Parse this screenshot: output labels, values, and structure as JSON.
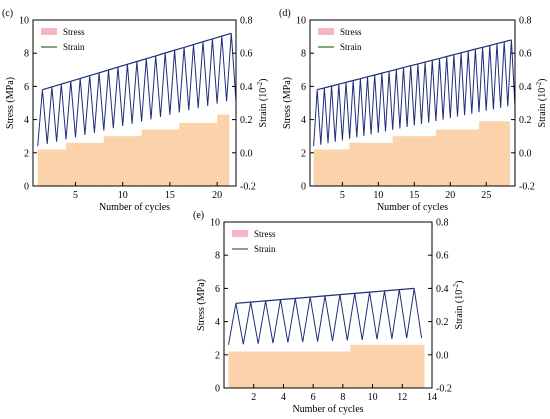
{
  "chart_data": [
    {
      "type": "area",
      "panel_label": "(c)",
      "xlabel": "Number of cycles",
      "ylabel": "Stress (MPa)",
      "y2label": "Strain (10",
      "y2label_exp": "-2",
      "y2label_close": ")",
      "xlim": [
        0.5,
        22
      ],
      "ylim": [
        0,
        10
      ],
      "y2lim": [
        -0.2,
        0.8
      ],
      "xticks": [
        5,
        10,
        15,
        20
      ],
      "yticks": [
        0,
        2,
        4,
        6,
        8,
        10
      ],
      "y2ticks": [
        -0.2,
        0.0,
        0.2,
        0.4,
        0.6,
        0.8
      ],
      "y2tick_labels": [
        "-0.2",
        "0.0",
        "0.2",
        "0.4",
        "0.6",
        "0.8"
      ],
      "legend": [
        "Stress",
        "Strain"
      ],
      "legend_position": "top-left",
      "cycles": 21,
      "stress_steps": [
        {
          "x0": 1,
          "x1": 4,
          "value": 2.2
        },
        {
          "x0": 4,
          "x1": 8,
          "value": 2.6
        },
        {
          "x0": 8,
          "x1": 12,
          "value": 3.0
        },
        {
          "x0": 12,
          "x1": 16,
          "value": 3.4
        },
        {
          "x0": 16,
          "x1": 20,
          "value": 3.8
        },
        {
          "x0": 20,
          "x1": 21.3,
          "value": 4.3
        }
      ],
      "strain_upper_start": 0.38,
      "strain_upper_end": 0.72,
      "strain_lower_start": 0.04,
      "strain_lower_end": 0.31
    },
    {
      "type": "area",
      "panel_label": "(d)",
      "xlabel": "Number of cycles",
      "ylabel": "Stress (MPa)",
      "y2label": "Strain (10",
      "y2label_exp": "-2",
      "y2label_close": ")",
      "xlim": [
        0.5,
        29
      ],
      "ylim": [
        0,
        10
      ],
      "y2lim": [
        -0.2,
        0.8
      ],
      "xticks": [
        5,
        10,
        15,
        20,
        25
      ],
      "yticks": [
        0,
        2,
        4,
        6,
        8,
        10
      ],
      "y2ticks": [
        -0.2,
        0.0,
        0.2,
        0.4,
        0.6,
        0.8
      ],
      "y2tick_labels": [
        "-0.2",
        "0.0",
        "0.2",
        "0.4",
        "0.6",
        "0.8"
      ],
      "legend": [
        "Stress",
        "Strain"
      ],
      "legend_position": "top-left",
      "cycles": 28,
      "stress_steps": [
        {
          "x0": 1,
          "x1": 6,
          "value": 2.2
        },
        {
          "x0": 6,
          "x1": 12,
          "value": 2.6
        },
        {
          "x0": 12,
          "x1": 18,
          "value": 3.0
        },
        {
          "x0": 18,
          "x1": 24,
          "value": 3.4
        },
        {
          "x0": 24,
          "x1": 28.3,
          "value": 3.9
        }
      ],
      "strain_upper_start": 0.38,
      "strain_upper_end": 0.68,
      "strain_lower_start": 0.04,
      "strain_lower_end": 0.28
    },
    {
      "type": "area",
      "panel_label": "(e)",
      "xlabel": "Number of cycles",
      "ylabel": "Stress (MPa)",
      "y2label": "Strain (10",
      "y2label_exp": "-2",
      "y2label_close": ")",
      "xlim": [
        0,
        14
      ],
      "ylim": [
        0,
        10
      ],
      "y2lim": [
        -0.2,
        0.8
      ],
      "xticks": [
        2,
        4,
        6,
        8,
        10,
        12,
        14
      ],
      "yticks": [
        0,
        2,
        4,
        6,
        8,
        10
      ],
      "y2ticks": [
        -0.2,
        0.0,
        0.2,
        0.4,
        0.6,
        0.8
      ],
      "y2tick_labels": [
        "-0.2",
        "0.0",
        "0.2",
        "0.4",
        "0.6",
        "0.8"
      ],
      "legend": [
        "Stress",
        "Strain"
      ],
      "legend_position": "top-left",
      "cycles": 13,
      "stress_steps": [
        {
          "x0": 0.3,
          "x1": 8.5,
          "value": 2.2
        },
        {
          "x0": 8.5,
          "x1": 13.5,
          "value": 2.6
        }
      ],
      "strain_upper_start": 0.31,
      "strain_upper_end": 0.4,
      "strain_lower_start": 0.06,
      "strain_lower_end": 0.1
    }
  ],
  "colors": {
    "stress_fill": "#fcd2ab",
    "stress_legend": "#f6b7c3",
    "strain_line": "#1f2d7a",
    "strain_legend": "#2b6e1f",
    "axis": "#000000"
  }
}
